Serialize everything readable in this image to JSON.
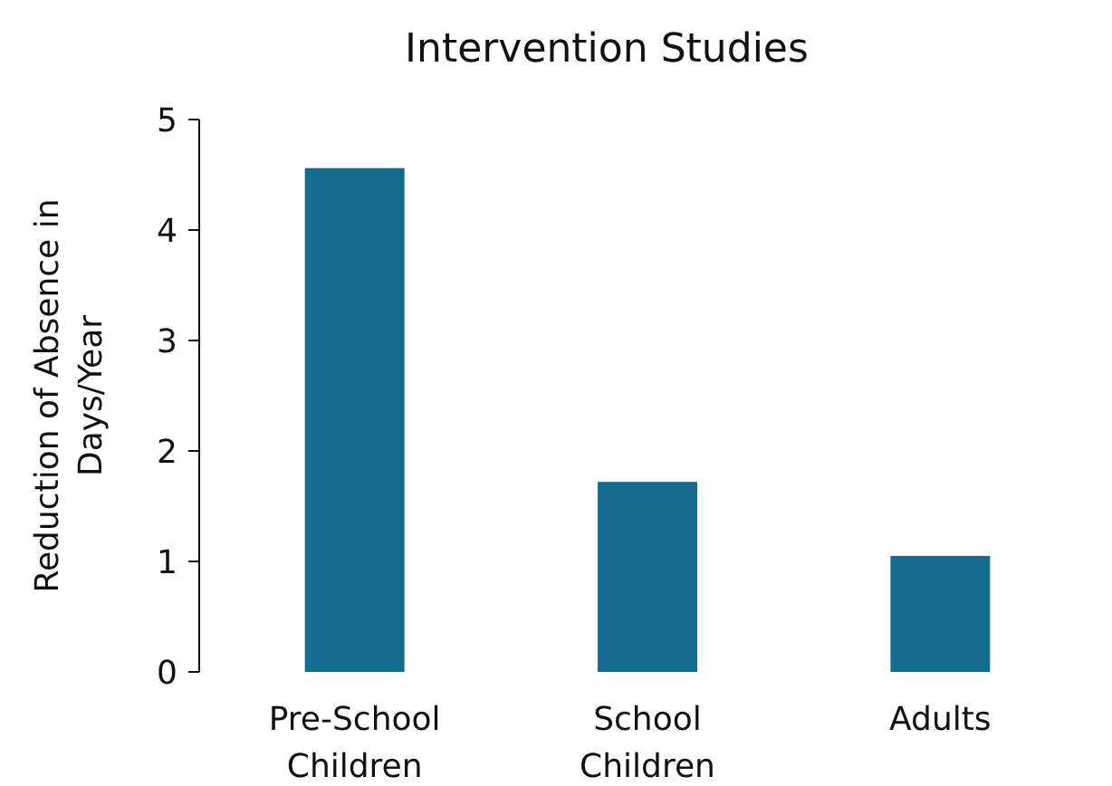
{
  "chart_data": {
    "type": "bar",
    "title": "Intervention Studies",
    "ylabel": "Reduction of Absence in Days/Year",
    "categories": [
      "Pre-School Children",
      "School Children",
      "Adults"
    ],
    "values": [
      4.56,
      1.72,
      1.05
    ],
    "color": "#156b8e",
    "ylim": [
      0,
      5
    ],
    "yticks": [
      0,
      1,
      2,
      3,
      4,
      5
    ],
    "grid": false
  }
}
